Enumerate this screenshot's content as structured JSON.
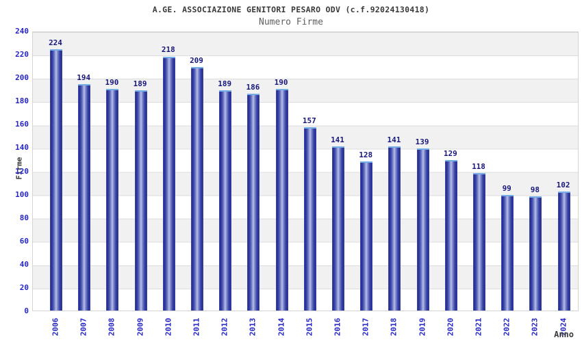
{
  "chart_data": {
    "type": "bar",
    "title": "A.GE. ASSOCIAZIONE GENITORI PESARO ODV (c.f.92024130418)",
    "subtitle": "Numero Firme",
    "xlabel": "Anno",
    "ylabel": "Firme",
    "categories": [
      "2006",
      "2007",
      "2008",
      "2009",
      "2010",
      "2011",
      "2012",
      "2013",
      "2014",
      "2015",
      "2016",
      "2017",
      "2018",
      "2019",
      "2020",
      "2021",
      "2022",
      "2023",
      "2024"
    ],
    "values": [
      224,
      194,
      190,
      189,
      218,
      209,
      189,
      186,
      190,
      157,
      141,
      128,
      141,
      139,
      129,
      118,
      99,
      98,
      102
    ],
    "ylim": [
      0,
      240
    ],
    "ytick_step": 20,
    "grid": "horizontal gridlines with alternating gray/white 20-unit bands",
    "legend": "none",
    "bar_value_labels": true,
    "colors": {
      "bar_edge": "#252c91",
      "bar_side": "#4a55b5",
      "bar_mid": "#3b47a6",
      "bar_light": "#7a85cb",
      "bar_highlight": "#b8c0ea",
      "bar_top_cap": "#74aee6",
      "tick_label": "#2525c8",
      "value_label": "#17177d",
      "title_color": "#3a3a3a",
      "subtitle_color": "#5f5f5f",
      "band_gray": "#f1f1f1",
      "band_white": "#ffffff",
      "plot_border": "#d4d4d4"
    }
  }
}
